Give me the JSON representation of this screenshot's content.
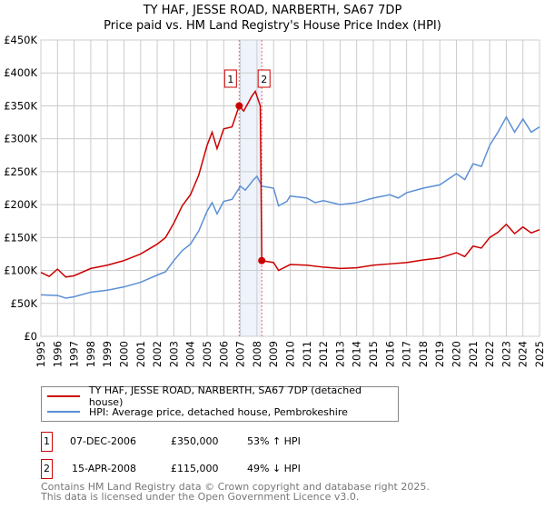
{
  "chart_data": {
    "type": "line",
    "title": "TY HAF, JESSE ROAD, NARBERTH, SA67 7DP",
    "subtitle": "Price paid vs. HM Land Registry's House Price Index (HPI)",
    "xlim": [
      1995,
      2025
    ],
    "ylim": [
      0,
      450000
    ],
    "x_ticks": [
      "1995",
      "1996",
      "1997",
      "1998",
      "1999",
      "2000",
      "2001",
      "2002",
      "2003",
      "2004",
      "2005",
      "2006",
      "2007",
      "2008",
      "2009",
      "2010",
      "2011",
      "2012",
      "2013",
      "2014",
      "2015",
      "2016",
      "2017",
      "2018",
      "2019",
      "2020",
      "2021",
      "2022",
      "2023",
      "2024",
      "2025"
    ],
    "y_ticks": [
      {
        "v": 0,
        "label": "£0"
      },
      {
        "v": 50000,
        "label": "£50K"
      },
      {
        "v": 100000,
        "label": "£100K"
      },
      {
        "v": 150000,
        "label": "£150K"
      },
      {
        "v": 200000,
        "label": "£200K"
      },
      {
        "v": 250000,
        "label": "£250K"
      },
      {
        "v": 300000,
        "label": "£300K"
      },
      {
        "v": 350000,
        "label": "£350K"
      },
      {
        "v": 400000,
        "label": "£400K"
      },
      {
        "v": 450000,
        "label": "£450K"
      }
    ],
    "grid": true,
    "shaded_range": [
      2006.93,
      2008.29
    ],
    "series": [
      {
        "name": "TY HAF, JESSE ROAD, NARBERTH, SA67 7DP (detached house)",
        "color": "#cc0000",
        "x": [
          1995,
          1995.5,
          1996,
          1996.5,
          1997,
          1998,
          1999,
          2000,
          2001,
          2002,
          2002.5,
          2003,
          2003.5,
          2004,
          2004.5,
          2005,
          2005.3,
          2005.6,
          2006,
          2006.5,
          2006.93,
          2007.2,
          2007.7,
          2007.9,
          2008.2,
          2008.29,
          2009,
          2009.3,
          2010,
          2011,
          2012,
          2013,
          2014,
          2015,
          2016,
          2017,
          2018,
          2019,
          2020,
          2020.5,
          2021,
          2021.5,
          2022,
          2022.5,
          2023,
          2023.5,
          2024,
          2024.5,
          2025
        ],
        "y": [
          97000,
          91000,
          102000,
          90000,
          92000,
          103000,
          108000,
          115000,
          125000,
          140000,
          150000,
          172000,
          198000,
          215000,
          245000,
          290000,
          310000,
          285000,
          315000,
          318000,
          350000,
          342000,
          365000,
          372000,
          350000,
          115000,
          112000,
          100000,
          109000,
          108000,
          105000,
          103000,
          104000,
          108000,
          110000,
          112000,
          116000,
          119000,
          127000,
          121000,
          137000,
          134000,
          150000,
          158000,
          170000,
          156000,
          166000,
          157000,
          162000
        ]
      },
      {
        "name": "HPI: Average price, detached house, Pembrokeshire",
        "color": "#5b8fd6",
        "x": [
          1995,
          1996,
          1996.5,
          1997,
          1998,
          1999,
          2000,
          2001,
          2002,
          2002.5,
          2003,
          2003.5,
          2004,
          2004.5,
          2005,
          2005.3,
          2005.6,
          2006,
          2006.5,
          2007,
          2007.3,
          2007.8,
          2008,
          2008.3,
          2009,
          2009.3,
          2009.8,
          2010,
          2011,
          2011.5,
          2012,
          2013,
          2014,
          2015,
          2016,
          2016.5,
          2017,
          2018,
          2019,
          2020,
          2020.5,
          2021,
          2021.5,
          2022,
          2022.5,
          2023,
          2023.5,
          2024,
          2024.5,
          2025
        ],
        "y": [
          63000,
          62000,
          58000,
          60000,
          67000,
          70000,
          75000,
          82000,
          93000,
          98000,
          115000,
          130000,
          140000,
          160000,
          190000,
          203000,
          186000,
          205000,
          208000,
          228000,
          222000,
          238000,
          243000,
          228000,
          225000,
          198000,
          205000,
          213000,
          210000,
          203000,
          206000,
          200000,
          203000,
          210000,
          215000,
          210000,
          218000,
          225000,
          230000,
          247000,
          238000,
          262000,
          258000,
          290000,
          310000,
          333000,
          310000,
          330000,
          310000,
          318000
        ]
      }
    ],
    "sales": [
      {
        "label": "1",
        "x": 2006.93,
        "y": 350000,
        "date": "07-DEC-2006",
        "price": "£350,000",
        "hpi": "53% ↑ HPI"
      },
      {
        "label": "2",
        "x": 2008.29,
        "y": 115000,
        "date": "15-APR-2008",
        "price": "£115,000",
        "hpi": "49% ↓ HPI"
      }
    ],
    "legend_placement": "bottom"
  },
  "footer": {
    "line1": "Contains HM Land Registry data © Crown copyright and database right 2025.",
    "line2": "This data is licensed under the Open Government Licence v3.0."
  }
}
